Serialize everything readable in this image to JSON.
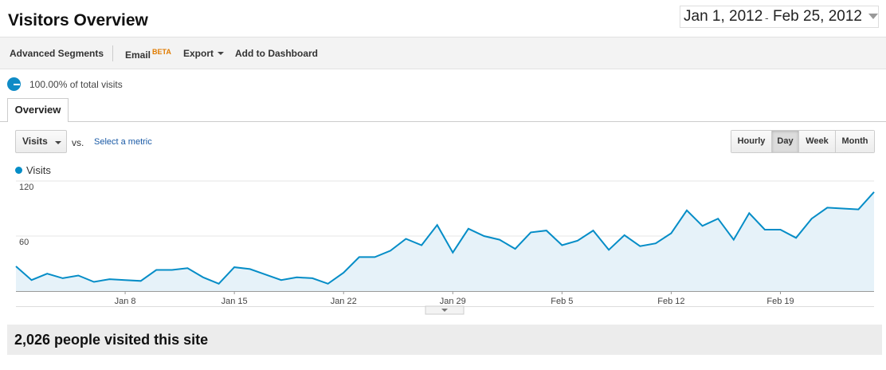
{
  "header": {
    "title": "Visitors Overview"
  },
  "date_range": {
    "start": "Jan 1, 2012",
    "separator": "-",
    "end": "Feb 25, 2012"
  },
  "toolbar": {
    "advanced_segments": "Advanced Segments",
    "email": "Email",
    "email_badge": "BETA",
    "export": "Export",
    "add_to_dashboard": "Add to Dashboard"
  },
  "segment": {
    "text": "100.00% of total visits"
  },
  "tabs": {
    "overview": "Overview"
  },
  "controls": {
    "metric": "Visits",
    "vs": "vs.",
    "select_metric": "Select a metric",
    "time_buttons": [
      {
        "label": "Hourly",
        "active": false
      },
      {
        "label": "Day",
        "active": true
      },
      {
        "label": "Week",
        "active": false
      },
      {
        "label": "Month",
        "active": false
      }
    ]
  },
  "chart_data": {
    "type": "area",
    "series": [
      {
        "name": "Visits",
        "color": "#058dc7",
        "values": [
          27,
          12,
          19,
          14,
          17,
          10,
          13,
          12,
          11,
          23,
          23,
          25,
          15,
          8,
          26,
          24,
          18,
          12,
          15,
          14,
          8,
          20,
          37,
          37,
          44,
          57,
          50,
          72,
          42,
          68,
          60,
          56,
          46,
          64,
          66,
          50,
          55,
          66,
          45,
          61,
          49,
          52,
          63,
          88,
          71,
          79,
          56,
          85,
          67,
          67,
          58,
          79,
          91,
          90,
          89,
          108
        ]
      }
    ],
    "x_tick_labels": [
      "Jan 8",
      "Jan 15",
      "Jan 22",
      "Jan 29",
      "Feb 5",
      "Feb 12",
      "Feb 19"
    ],
    "x_tick_indices": [
      7,
      14,
      21,
      28,
      35,
      42,
      49
    ],
    "y_tick_labels": [
      "120",
      "60"
    ],
    "y_ticks": [
      120,
      60
    ],
    "ylim": [
      0,
      120
    ],
    "grid": "horizontal"
  },
  "summary": {
    "text": "2,026 people visited this site"
  }
}
